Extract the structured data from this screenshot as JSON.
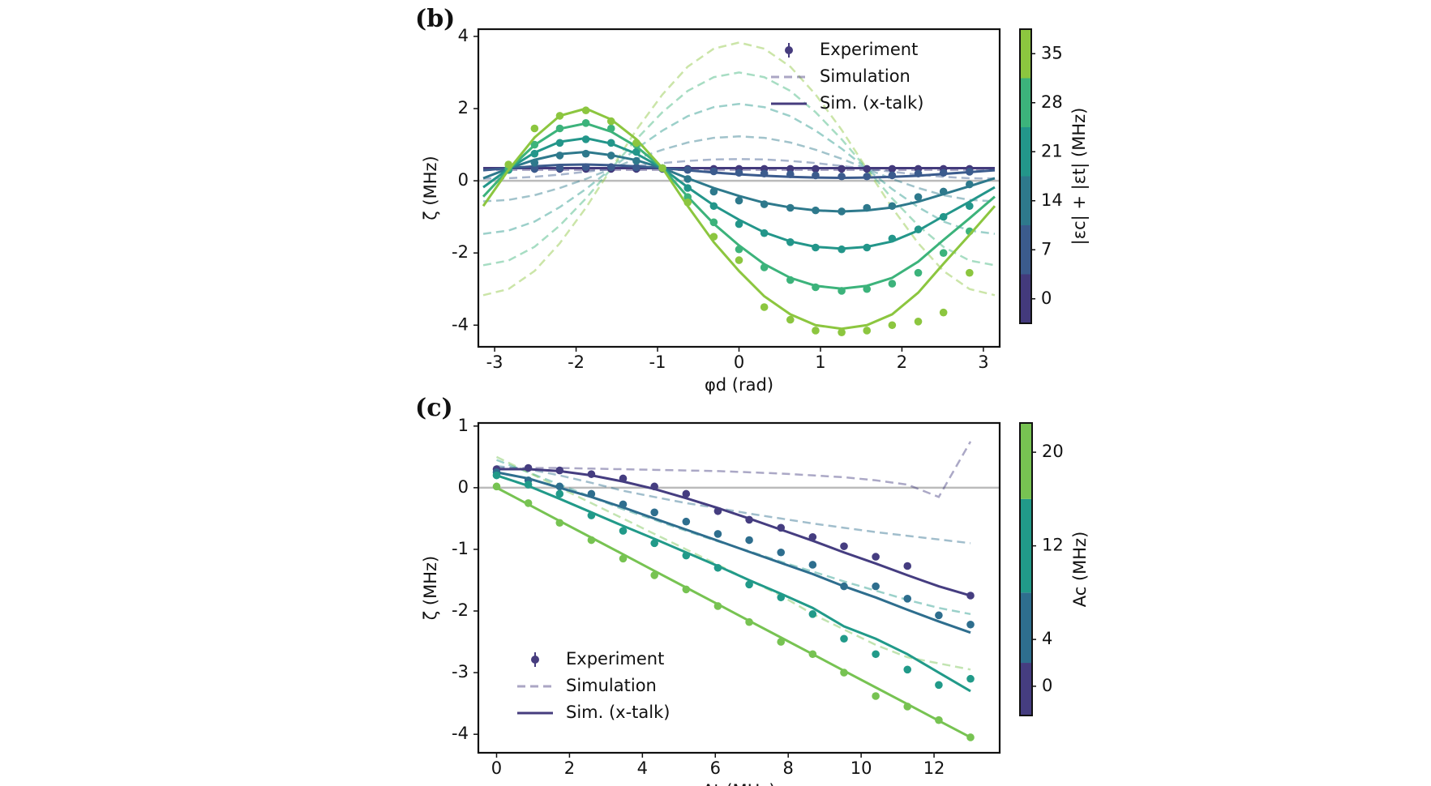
{
  "chart_data": [
    {
      "type": "line",
      "panel_label": "(b)",
      "xlabel": "φd (rad)",
      "ylabel": "ζ (MHz)",
      "xlim": [
        -3.2,
        3.2
      ],
      "ylim": [
        -4.6,
        4.2
      ],
      "xticks": [
        -3,
        -2,
        -1,
        0,
        1,
        2,
        3
      ],
      "yticks": [
        -4,
        -2,
        0,
        2,
        4
      ],
      "hline": 0,
      "x": [
        -3.14,
        -2.83,
        -2.51,
        -2.2,
        -1.88,
        -1.57,
        -1.26,
        -0.94,
        -0.63,
        -0.31,
        0,
        0.31,
        0.63,
        0.94,
        1.26,
        1.57,
        1.88,
        2.2,
        2.51,
        2.83,
        3.14
      ],
      "x_points": [
        -2.83,
        -2.51,
        -2.2,
        -1.88,
        -1.57,
        -1.26,
        -0.94,
        -0.63,
        -0.31,
        0,
        0.31,
        0.63,
        0.94,
        1.26,
        1.57,
        1.88,
        2.2,
        2.51,
        2.83
      ],
      "legend": {
        "entries": [
          "Experiment",
          "Simulation",
          "Sim. (x-talk)"
        ],
        "corner": "upper right",
        "color": "#463c7e"
      },
      "colorbar": {
        "label": "|εc| + |εt| (MHz)",
        "lim": [
          -3.5,
          38.5
        ],
        "ticks": [
          0,
          7,
          14,
          21,
          28,
          35
        ]
      },
      "groups": [
        {
          "color": "#433a7c",
          "simulation": [
            0.3,
            0.3,
            0.3,
            0.3,
            0.3,
            0.3,
            0.3,
            0.3,
            0.3,
            0.3,
            0.3,
            0.3,
            0.3,
            0.3,
            0.3,
            0.3,
            0.3,
            0.3,
            0.3,
            0.3,
            0.3
          ],
          "xtalk": [
            0.35,
            0.35,
            0.35,
            0.35,
            0.35,
            0.35,
            0.35,
            0.35,
            0.35,
            0.35,
            0.35,
            0.35,
            0.35,
            0.35,
            0.35,
            0.35,
            0.35,
            0.35,
            0.35,
            0.35,
            0.35
          ],
          "experiment": [
            0.33,
            0.33,
            0.33,
            0.33,
            0.33,
            0.33,
            0.33,
            0.33,
            0.33,
            0.33,
            0.33,
            0.33,
            0.33,
            0.33,
            0.33,
            0.33,
            0.33,
            0.33,
            0.33
          ]
        },
        {
          "color": "#3b5b8d",
          "simulation": [
            0.06,
            0.07,
            0.11,
            0.17,
            0.25,
            0.33,
            0.41,
            0.49,
            0.55,
            0.59,
            0.6,
            0.59,
            0.55,
            0.49,
            0.41,
            0.33,
            0.25,
            0.17,
            0.11,
            0.07,
            0.06
          ],
          "xtalk": [
            0.29,
            0.35,
            0.4,
            0.44,
            0.45,
            0.43,
            0.4,
            0.35,
            0.29,
            0.23,
            0.18,
            0.14,
            0.11,
            0.09,
            0.08,
            0.09,
            0.11,
            0.14,
            0.19,
            0.24,
            0.29
          ],
          "experiment": [
            0.3,
            0.33,
            0.35,
            0.38,
            0.38,
            0.37,
            0.35,
            0.3,
            0.26,
            0.22,
            0.2,
            0.18,
            0.15,
            0.12,
            0.12,
            0.15,
            0.2,
            0.22,
            0.25
          ]
        },
        {
          "color": "#2e798c",
          "simulation": [
            -0.57,
            -0.53,
            -0.4,
            -0.2,
            0.05,
            0.33,
            0.61,
            0.86,
            1.06,
            1.19,
            1.23,
            1.19,
            1.06,
            0.86,
            0.61,
            0.33,
            0.05,
            -0.2,
            -0.4,
            -0.53,
            -0.57
          ],
          "xtalk": [
            0.07,
            0.34,
            0.58,
            0.74,
            0.8,
            0.71,
            0.57,
            0.35,
            0.07,
            -0.2,
            -0.42,
            -0.61,
            -0.74,
            -0.82,
            -0.85,
            -0.82,
            -0.74,
            -0.58,
            -0.37,
            -0.15,
            0.07
          ],
          "experiment": [
            0.3,
            0.5,
            0.7,
            0.75,
            0.7,
            0.55,
            0.35,
            0.05,
            -0.3,
            -0.55,
            -0.65,
            -0.75,
            -0.82,
            -0.85,
            -0.75,
            -0.7,
            -0.45,
            -0.3,
            -0.1
          ]
        },
        {
          "color": "#23968a",
          "simulation": [
            -1.47,
            -1.38,
            -1.13,
            -0.73,
            -0.23,
            0.33,
            0.89,
            1.39,
            1.79,
            2.04,
            2.13,
            2.04,
            1.79,
            1.39,
            0.89,
            0.33,
            -0.23,
            -0.73,
            -1.13,
            -1.38,
            -1.47
          ],
          "xtalk": [
            -0.18,
            0.33,
            0.78,
            1.08,
            1.18,
            1.03,
            0.75,
            0.35,
            -0.18,
            -0.68,
            -1.08,
            -1.43,
            -1.68,
            -1.83,
            -1.88,
            -1.83,
            -1.68,
            -1.38,
            -0.98,
            -0.58,
            -0.18
          ],
          "experiment": [
            0.3,
            0.75,
            1.05,
            1.15,
            1.05,
            0.8,
            0.35,
            -0.2,
            -0.7,
            -1.2,
            -1.45,
            -1.7,
            -1.85,
            -1.9,
            -1.85,
            -1.6,
            -1.35,
            -1.0,
            -0.7
          ]
        },
        {
          "color": "#3cb37b",
          "simulation": [
            -2.34,
            -2.21,
            -1.83,
            -1.24,
            -0.49,
            0.33,
            1.15,
            1.9,
            2.49,
            2.87,
            3.0,
            2.87,
            2.49,
            1.9,
            1.15,
            0.33,
            -0.49,
            -1.24,
            -1.83,
            -2.21,
            -2.34
          ],
          "xtalk": [
            -0.44,
            0.31,
            0.99,
            1.44,
            1.59,
            1.36,
            0.95,
            0.35,
            -0.44,
            -1.19,
            -1.79,
            -2.31,
            -2.69,
            -2.91,
            -2.99,
            -2.91,
            -2.69,
            -2.24,
            -1.64,
            -1.04,
            -0.44
          ],
          "experiment": [
            0.35,
            1.0,
            1.45,
            1.6,
            1.45,
            1.0,
            0.35,
            -0.45,
            -1.15,
            -1.9,
            -2.4,
            -2.75,
            -2.95,
            -3.05,
            -3.0,
            -2.85,
            -2.55,
            -2.0,
            -1.4
          ]
        },
        {
          "color": "#8cc63f",
          "simulation": [
            -3.17,
            -3.0,
            -2.5,
            -1.73,
            -0.75,
            0.33,
            1.41,
            2.39,
            3.16,
            3.66,
            3.83,
            3.66,
            3.16,
            2.39,
            1.41,
            0.33,
            -0.75,
            -1.73,
            -2.5,
            -3.0,
            -3.17
          ],
          "xtalk": [
            -0.7,
            0.3,
            1.2,
            1.8,
            2.0,
            1.7,
            1.15,
            0.35,
            -0.7,
            -1.7,
            -2.5,
            -3.2,
            -3.7,
            -4.0,
            -4.1,
            -4.0,
            -3.7,
            -3.1,
            -2.3,
            -1.5,
            -0.7
          ],
          "experiment": [
            0.45,
            1.45,
            1.8,
            1.95,
            1.65,
            1.05,
            0.35,
            -0.6,
            -1.55,
            -2.2,
            -3.5,
            -3.85,
            -4.15,
            -4.2,
            -4.15,
            -4.0,
            -3.9,
            -3.65,
            -2.55
          ]
        }
      ]
    },
    {
      "type": "line",
      "panel_label": "(c)",
      "xlabel": "At (MHz)",
      "ylabel": "ζ (MHz)",
      "xlim": [
        -0.5,
        13.8
      ],
      "ylim": [
        -4.3,
        1.05
      ],
      "xticks": [
        0,
        2,
        4,
        6,
        8,
        10,
        12
      ],
      "yticks": [
        -4,
        -3,
        -2,
        -1,
        0,
        1
      ],
      "hline": 0,
      "x": [
        0,
        0.87,
        1.73,
        2.6,
        3.47,
        4.33,
        5.2,
        6.07,
        6.93,
        7.8,
        8.67,
        9.53,
        10.4,
        11.27,
        12.13,
        13
      ],
      "legend": {
        "entries": [
          "Experiment",
          "Simulation",
          "Sim. (x-talk)"
        ],
        "corner": "lower left",
        "color": "#463c7e"
      },
      "colorbar": {
        "label": "Ac (MHz)",
        "lim": [
          -2.5,
          22.5
        ],
        "ticks": [
          0,
          4,
          12,
          20
        ]
      },
      "groups": [
        {
          "color": "#453d80",
          "simulation": [
            0.32,
            0.32,
            0.32,
            0.31,
            0.3,
            0.29,
            0.28,
            0.27,
            0.25,
            0.23,
            0.2,
            0.17,
            0.12,
            0.05,
            -0.15,
            0.75
          ],
          "xtalk": [
            0.3,
            0.3,
            0.27,
            0.2,
            0.1,
            -0.02,
            -0.17,
            -0.33,
            -0.5,
            -0.68,
            -0.86,
            -1.05,
            -1.23,
            -1.42,
            -1.6,
            -1.75
          ],
          "experiment": [
            0.3,
            0.32,
            0.28,
            0.22,
            0.15,
            0.02,
            -0.1,
            -0.38,
            -0.52,
            -0.65,
            -0.8,
            -0.95,
            -1.12,
            -1.27,
            null,
            -1.75
          ]
        },
        {
          "color": "#2e6e8e",
          "simulation": [
            0.35,
            0.3,
            0.2,
            0.08,
            -0.05,
            -0.15,
            -0.25,
            -0.33,
            -0.42,
            -0.5,
            -0.58,
            -0.65,
            -0.72,
            -0.78,
            -0.84,
            -0.9
          ],
          "xtalk": [
            0.25,
            0.15,
            0.0,
            -0.15,
            -0.32,
            -0.5,
            -0.68,
            -0.86,
            -1.04,
            -1.22,
            -1.4,
            -1.6,
            -1.78,
            -1.98,
            -2.17,
            -2.35
          ],
          "experiment": [
            0.25,
            0.12,
            0.02,
            -0.1,
            -0.27,
            -0.4,
            -0.55,
            -0.75,
            -0.85,
            -1.05,
            -1.25,
            -1.6,
            -1.6,
            -1.8,
            -2.07,
            -2.22
          ]
        },
        {
          "color": "#219a89",
          "simulation": [
            0.45,
            0.25,
            0.05,
            -0.15,
            -0.35,
            -0.52,
            -0.7,
            -0.87,
            -1.03,
            -1.2,
            -1.36,
            -1.52,
            -1.67,
            -1.82,
            -1.95,
            -2.05
          ],
          "xtalk": [
            0.2,
            0.03,
            -0.18,
            -0.4,
            -0.62,
            -0.83,
            -1.05,
            -1.27,
            -1.5,
            -1.72,
            -1.95,
            -2.25,
            -2.45,
            -2.7,
            -3.0,
            -3.3
          ],
          "experiment": [
            0.2,
            0.05,
            -0.1,
            -0.45,
            -0.7,
            -0.9,
            -1.1,
            -1.3,
            -1.57,
            -1.78,
            -2.05,
            -2.45,
            -2.7,
            -2.95,
            -3.2,
            -3.1
          ]
        },
        {
          "color": "#77c352",
          "simulation": [
            0.5,
            0.25,
            0.0,
            -0.25,
            -0.5,
            -0.75,
            -1.0,
            -1.25,
            -1.5,
            -1.75,
            -2.05,
            -2.3,
            -2.55,
            -2.75,
            -2.85,
            -2.95
          ],
          "xtalk": [
            0,
            -0.27,
            -0.54,
            -0.81,
            -1.08,
            -1.35,
            -1.62,
            -1.89,
            -2.16,
            -2.43,
            -2.7,
            -2.97,
            -3.24,
            -3.51,
            -3.78,
            -4.05
          ],
          "experiment": [
            0.02,
            -0.25,
            -0.57,
            -0.85,
            -1.15,
            -1.42,
            -1.65,
            -1.92,
            -2.18,
            -2.5,
            -2.7,
            -3.0,
            -3.38,
            -3.55,
            -3.77,
            -4.05
          ]
        }
      ]
    }
  ]
}
